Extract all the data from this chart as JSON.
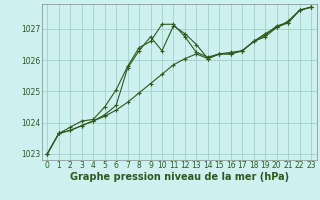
{
  "title": "Graphe pression niveau de la mer (hPa)",
  "background_color": "#cdf0f0",
  "grid_color": "#99ccbb",
  "line_color": "#2d5a1b",
  "hours": [
    0,
    1,
    2,
    3,
    4,
    5,
    6,
    7,
    8,
    9,
    10,
    11,
    12,
    13,
    14,
    15,
    16,
    17,
    18,
    19,
    20,
    21,
    22,
    23
  ],
  "line1": [
    1023.0,
    1023.65,
    1023.75,
    1023.9,
    1024.05,
    1024.25,
    1024.55,
    1025.75,
    1026.3,
    1026.75,
    1026.3,
    1027.1,
    1026.85,
    1026.5,
    1026.05,
    1026.2,
    1026.2,
    1026.3,
    1026.6,
    1026.75,
    1027.05,
    1027.2,
    1027.6,
    1027.7
  ],
  "line2": [
    1023.0,
    1023.65,
    1023.75,
    1023.9,
    1024.05,
    1024.2,
    1024.4,
    1024.65,
    1024.95,
    1025.25,
    1025.55,
    1025.85,
    1026.05,
    1026.2,
    1026.05,
    1026.2,
    1026.2,
    1026.3,
    1026.6,
    1026.8,
    1027.1,
    1027.2,
    1027.6,
    1027.7
  ],
  "line3": [
    1023.0,
    1023.65,
    1023.85,
    1024.05,
    1024.1,
    1024.5,
    1025.05,
    1025.8,
    1026.4,
    1026.6,
    1027.15,
    1027.15,
    1026.75,
    1026.25,
    1026.1,
    1026.2,
    1026.25,
    1026.3,
    1026.6,
    1026.85,
    1027.05,
    1027.25,
    1027.6,
    1027.7
  ],
  "ylim": [
    1022.8,
    1027.8
  ],
  "yticks": [
    1023,
    1024,
    1025,
    1026,
    1027
  ],
  "xticks": [
    0,
    1,
    2,
    3,
    4,
    5,
    6,
    7,
    8,
    9,
    10,
    11,
    12,
    13,
    14,
    15,
    16,
    17,
    18,
    19,
    20,
    21,
    22,
    23
  ],
  "title_fontsize": 7,
  "tick_fontsize": 5.5,
  "xlabel_color": "#2d5a1b"
}
